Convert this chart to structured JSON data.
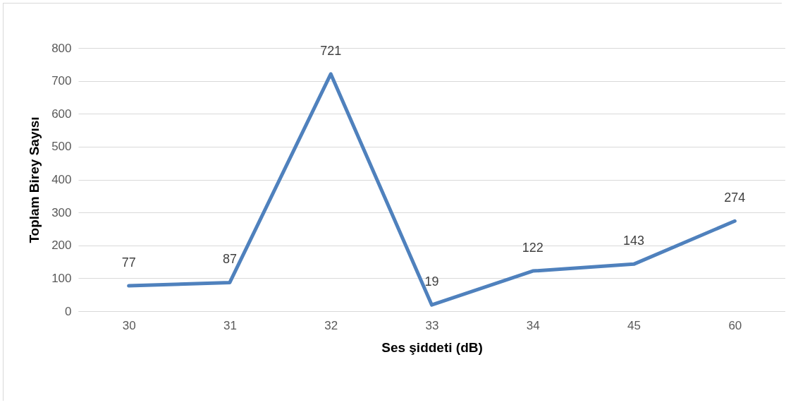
{
  "chart_data": {
    "type": "line",
    "xlabel": "Ses şiddeti (dB)",
    "ylabel": "Toplam Birey Sayısı",
    "categories": [
      "30",
      "31",
      "32",
      "33",
      "34",
      "45",
      "60"
    ],
    "series": [
      {
        "color": "#4f81bd",
        "values": [
          77,
          87,
          721,
          19,
          122,
          143,
          274
        ]
      }
    ],
    "ylim": [
      0,
      800
    ],
    "yticks": [
      0,
      100,
      200,
      300,
      400,
      500,
      600,
      700,
      800
    ],
    "grid": "y",
    "data_labels": true,
    "marker": "none",
    "line_style": "solid"
  }
}
